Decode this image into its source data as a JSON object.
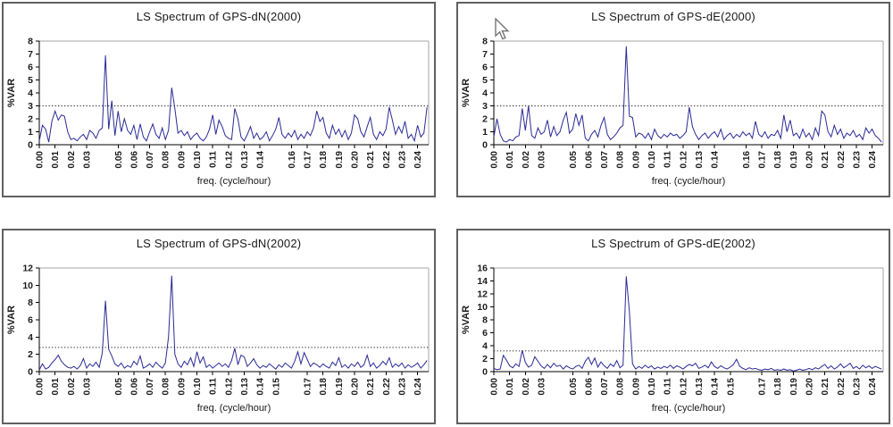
{
  "page": {
    "background": "#ffffff"
  },
  "colors": {
    "line": "#2a2a96",
    "threshold": "#3c3c3c",
    "axis": "#000000",
    "plot_border": "#a6a6a6",
    "box_border": "#606060",
    "text": "#1a1a1a"
  },
  "cursor": {
    "visible": true,
    "approx_x": 553,
    "approx_y": 22,
    "location": "top-left area of GPS-dE(2000) chart"
  },
  "chart_data": [
    {
      "type": "line",
      "title": "LS Spectrum of GPS-dN(2000)",
      "xlabel": "freq. (cycle/hour)",
      "ylabel": "%VAR",
      "ylim": [
        0,
        8
      ],
      "ytick_step": 1,
      "xlim": [
        0,
        0.247
      ],
      "xticks": [
        "0.00",
        "0.01",
        "0.02",
        "0.03",
        "0.05",
        "0.06",
        "0.07",
        "0.08",
        "0.09",
        "0.10",
        "0.11",
        "0.12",
        "0.13",
        "0.14",
        "0.16",
        "0.17",
        "0.18",
        "0.19",
        "0.20",
        "0.21",
        "0.22",
        "0.23",
        "0.24"
      ],
      "threshold": 3.0,
      "x_step": 0.002,
      "grid": false,
      "legend": "none",
      "main_peaks": [
        {
          "x": 0.042,
          "y": 6.9
        },
        {
          "x": 0.084,
          "y": 4.4
        }
      ],
      "values": [
        0.3,
        1.5,
        1.2,
        0.2,
        1.8,
        2.6,
        1.9,
        2.3,
        2.2,
        1.0,
        0.4,
        0.5,
        0.3,
        0.6,
        0.8,
        0.4,
        1.1,
        0.9,
        0.5,
        1.1,
        1.3,
        6.9,
        1.2,
        3.4,
        0.7,
        2.6,
        1.0,
        2.0,
        1.1,
        0.8,
        1.5,
        0.4,
        1.6,
        0.6,
        0.3,
        1.0,
        1.6,
        0.8,
        0.5,
        1.3,
        0.4,
        1.1,
        4.4,
        2.8,
        0.9,
        1.1,
        0.7,
        1.0,
        0.4,
        0.7,
        0.9,
        0.5,
        0.3,
        0.6,
        1.2,
        2.3,
        0.8,
        1.9,
        1.4,
        0.7,
        0.5,
        0.4,
        2.8,
        2.0,
        0.6,
        0.3,
        0.8,
        1.4,
        0.5,
        0.9,
        0.4,
        0.6,
        1.0,
        0.3,
        0.7,
        1.2,
        2.1,
        0.8,
        0.5,
        0.9,
        0.6,
        1.1,
        0.4,
        0.8,
        0.5,
        1.0,
        0.7,
        1.3,
        2.6,
        1.8,
        2.1,
        0.9,
        0.5,
        1.5,
        0.8,
        1.2,
        0.6,
        1.1,
        0.4,
        0.9,
        2.3,
        2.0,
        1.0,
        0.6,
        1.4,
        2.1,
        0.8,
        0.4,
        1.0,
        0.7,
        1.2,
        2.9,
        1.9,
        0.8,
        1.4,
        0.9,
        1.8,
        0.5,
        0.8,
        0.3,
        1.5,
        0.6,
        0.9,
        2.9
      ]
    },
    {
      "type": "line",
      "title": "LS Spectrum of GPS-dE(2000)",
      "xlabel": "freq. (cycle/hour)",
      "ylabel": "%VAR",
      "ylim": [
        0,
        8
      ],
      "ytick_step": 1,
      "xlim": [
        0,
        0.247
      ],
      "xticks": [
        "0.00",
        "0.01",
        "0.02",
        "0.03",
        "0.05",
        "0.06",
        "0.07",
        "0.08",
        "0.09",
        "0.10",
        "0.11",
        "0.12",
        "0.13",
        "0.14",
        "0.16",
        "0.17",
        "0.18",
        "0.19",
        "0.20",
        "0.21",
        "0.22",
        "0.23",
        "0.24"
      ],
      "threshold": 3.0,
      "x_step": 0.002,
      "grid": false,
      "legend": "none",
      "main_peaks": [
        {
          "x": 0.084,
          "y": 7.6
        }
      ],
      "values": [
        0.6,
        2.0,
        0.8,
        0.3,
        0.2,
        0.4,
        0.3,
        0.6,
        0.7,
        2.8,
        1.1,
        3.0,
        0.7,
        0.5,
        1.3,
        0.8,
        1.0,
        1.9,
        0.6,
        1.4,
        0.7,
        1.0,
        1.9,
        2.5,
        0.9,
        1.2,
        2.4,
        1.5,
        2.3,
        0.5,
        0.3,
        0.8,
        1.1,
        0.6,
        1.5,
        2.1,
        0.8,
        0.4,
        0.6,
        0.9,
        1.3,
        1.5,
        7.6,
        2.2,
        2.1,
        0.6,
        0.9,
        0.8,
        0.5,
        0.9,
        0.4,
        1.2,
        0.7,
        0.5,
        0.8,
        0.6,
        0.9,
        0.7,
        0.8,
        0.5,
        0.7,
        1.0,
        2.9,
        1.4,
        0.8,
        0.4,
        0.7,
        0.9,
        0.5,
        0.8,
        1.0,
        0.6,
        1.2,
        0.4,
        0.7,
        0.9,
        0.5,
        0.8,
        0.6,
        1.0,
        0.7,
        0.9,
        0.5,
        1.8,
        0.8,
        0.6,
        1.0,
        0.5,
        0.8,
        0.7,
        1.1,
        0.5,
        2.3,
        1.0,
        1.9,
        0.7,
        0.9,
        0.5,
        1.2,
        0.6,
        0.9,
        0.4,
        1.3,
        0.7,
        2.6,
        2.3,
        1.0,
        0.6,
        1.5,
        0.8,
        1.2,
        0.5,
        0.9,
        0.7,
        1.1,
        0.6,
        0.8,
        0.4,
        1.3,
        0.9,
        1.2,
        0.7,
        0.5,
        0.2
      ]
    },
    {
      "type": "line",
      "title": "LS Spectrum of GPS-dN(2002)",
      "xlabel": "freq. (cycle/hour)",
      "ylabel": "%VAR",
      "ylim": [
        0,
        12
      ],
      "ytick_step": 2,
      "xlim": [
        0,
        0.247
      ],
      "xticks": [
        "0.00",
        "0.01",
        "0.02",
        "0.03",
        "0.05",
        "0.06",
        "0.07",
        "0.08",
        "0.09",
        "0.10",
        "0.11",
        "0.12",
        "0.13",
        "0.14",
        "0.15",
        "0.17",
        "0.18",
        "0.19",
        "0.20",
        "0.21",
        "0.22",
        "0.23",
        "0.24"
      ],
      "threshold": 2.8,
      "x_step": 0.002,
      "grid": false,
      "legend": "none",
      "main_peaks": [
        {
          "x": 0.042,
          "y": 8.2
        },
        {
          "x": 0.084,
          "y": 11.1
        }
      ],
      "values": [
        0.2,
        0.9,
        0.3,
        0.5,
        1.0,
        1.4,
        1.9,
        1.2,
        0.8,
        0.5,
        0.4,
        0.6,
        0.3,
        0.7,
        1.5,
        0.4,
        0.9,
        0.6,
        1.1,
        0.5,
        2.2,
        8.2,
        2.6,
        1.8,
        0.9,
        0.6,
        1.0,
        0.4,
        0.7,
        0.5,
        1.2,
        0.8,
        1.8,
        0.4,
        0.6,
        0.9,
        0.5,
        1.1,
        0.7,
        0.4,
        1.0,
        4.0,
        11.1,
        2.0,
        0.9,
        0.5,
        1.2,
        0.8,
        1.6,
        0.6,
        2.3,
        1.0,
        1.7,
        0.5,
        0.8,
        0.4,
        0.7,
        1.0,
        0.6,
        0.9,
        0.5,
        1.3,
        2.7,
        0.8,
        1.9,
        1.7,
        0.6,
        1.0,
        1.5,
        0.8,
        0.4,
        0.7,
        0.5,
        0.9,
        0.6,
        0.3,
        0.8,
        0.5,
        1.0,
        0.7,
        0.4,
        1.2,
        2.3,
        0.9,
        2.2,
        1.4,
        0.6,
        1.0,
        0.8,
        0.5,
        0.9,
        0.6,
        0.4,
        1.1,
        0.7,
        1.6,
        0.5,
        0.8,
        0.4,
        0.9,
        0.6,
        1.1,
        0.5,
        0.8,
        1.9,
        0.6,
        1.0,
        0.4,
        0.7,
        1.2,
        0.8,
        1.6,
        0.5,
        0.9,
        0.6,
        1.0,
        0.4,
        0.8,
        0.5,
        0.7,
        1.0,
        0.4,
        0.8,
        1.3
      ]
    },
    {
      "type": "line",
      "title": "LS Spectrum of GPS-dE(2002)",
      "xlabel": "freq. (cycle/hour)",
      "ylabel": "%VAR",
      "ylim": [
        0,
        16
      ],
      "ytick_step": 2,
      "xlim": [
        0,
        0.247
      ],
      "xticks": [
        "0.00",
        "0.01",
        "0.02",
        "0.03",
        "0.05",
        "0.06",
        "0.07",
        "0.08",
        "0.09",
        "0.10",
        "0.11",
        "0.12",
        "0.13",
        "0.14",
        "0.15",
        "0.17",
        "0.18",
        "0.19",
        "0.20",
        "0.21",
        "0.22",
        "0.23",
        "0.24"
      ],
      "threshold": 3.2,
      "x_step": 0.002,
      "grid": false,
      "legend": "none",
      "main_peaks": [
        {
          "x": 0.084,
          "y": 14.7
        }
      ],
      "values": [
        0.5,
        0.3,
        0.4,
        2.5,
        1.8,
        0.9,
        0.6,
        1.2,
        0.8,
        3.3,
        1.4,
        0.7,
        1.0,
        2.3,
        1.6,
        0.9,
        0.5,
        1.1,
        0.6,
        1.3,
        0.8,
        1.0,
        0.4,
        0.9,
        0.6,
        0.4,
        0.8,
        1.0,
        0.5,
        1.6,
        2.2,
        1.1,
        2.1,
        0.7,
        1.5,
        0.9,
        0.5,
        1.2,
        0.8,
        1.7,
        0.6,
        1.0,
        14.7,
        9.3,
        1.2,
        0.4,
        0.8,
        0.5,
        1.0,
        0.6,
        0.9,
        0.4,
        0.7,
        0.5,
        0.8,
        0.6,
        1.0,
        0.5,
        0.9,
        0.7,
        0.4,
        0.8,
        1.1,
        0.9,
        1.3,
        0.5,
        0.7,
        1.0,
        0.6,
        1.5,
        0.8,
        0.5,
        0.9,
        0.6,
        0.4,
        0.7,
        1.1,
        1.9,
        0.8,
        0.5,
        0.3,
        0.6,
        0.4,
        0.5,
        0.3,
        0.2,
        0.4,
        0.3,
        0.5,
        0.2,
        0.3,
        0.2,
        0.4,
        0.2,
        0.3,
        0.1,
        0.2,
        0.4,
        0.2,
        0.3,
        0.5,
        0.3,
        0.6,
        0.4,
        0.8,
        1.1,
        0.5,
        0.9,
        0.4,
        0.7,
        1.2,
        0.6,
        0.9,
        1.3,
        0.5,
        0.8,
        0.4,
        1.0,
        0.6,
        0.9,
        0.5,
        0.8,
        0.6,
        0.4
      ]
    }
  ]
}
